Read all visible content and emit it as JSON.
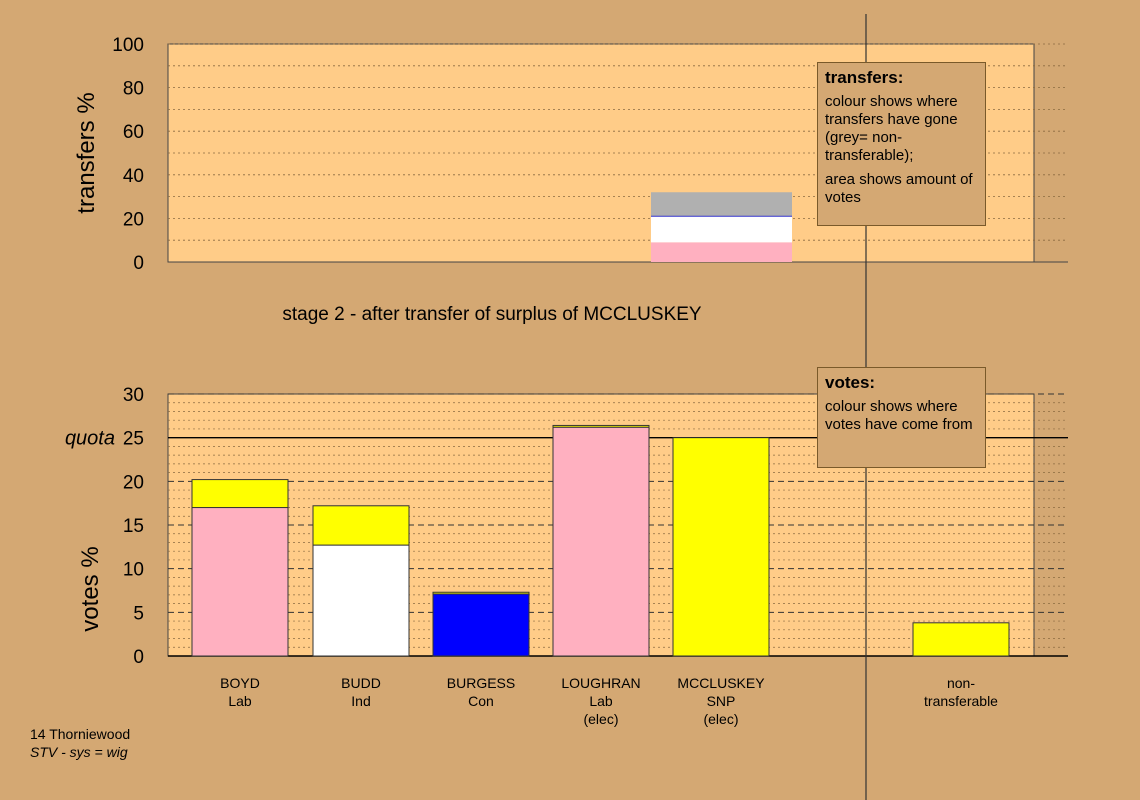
{
  "stage_title": "stage 2 - after transfer of surplus of MCCLUSKEY",
  "ward_label": "14 Thorniewood",
  "system_label": "STV - sys = wig",
  "colors": {
    "background": "#d4a873",
    "plot_bg": "#ffcc88",
    "Lab": "#ffb0c0",
    "Ind": "#ffffff",
    "Con": "#0000ff",
    "SNP": "#ffff00",
    "non_transferable": "#b0b0b0"
  },
  "transfers_legend": {
    "title": "transfers:",
    "line1": "colour shows where transfers have gone (grey= non-transferable);",
    "line2": "area shows amount of votes"
  },
  "votes_legend": {
    "title": "votes:",
    "line1": "colour shows where votes have come from"
  },
  "chart_data": [
    {
      "type": "bar",
      "ylabel": "transfers %",
      "ylim": [
        0,
        100
      ],
      "yticks": [
        0,
        20,
        40,
        60,
        80,
        100
      ],
      "grid": true,
      "bar_position": "MCCLUSKEY",
      "segments": [
        {
          "color_key": "Lab",
          "from": 0,
          "to": 9
        },
        {
          "color_key": "Ind",
          "from": 9,
          "to": 21
        },
        {
          "color_key": "non_transferable",
          "from": 21,
          "to": 32
        }
      ]
    },
    {
      "type": "bar",
      "ylabel": "votes %",
      "ylim": [
        0,
        30
      ],
      "yticks": [
        0,
        5,
        10,
        15,
        20,
        25,
        30
      ],
      "quota": 25,
      "quota_label": "quota",
      "grid": true,
      "candidates": [
        {
          "name": "BOYD",
          "party": "Lab",
          "note": "",
          "segments": [
            {
              "color_key": "Lab",
              "from": 0,
              "to": 17
            },
            {
              "color_key": "SNP",
              "from": 17,
              "to": 20.2
            }
          ]
        },
        {
          "name": "BUDD",
          "party": "Ind",
          "note": "",
          "segments": [
            {
              "color_key": "Ind",
              "from": 0,
              "to": 12.7
            },
            {
              "color_key": "SNP",
              "from": 12.7,
              "to": 17.2
            }
          ]
        },
        {
          "name": "BURGESS",
          "party": "Con",
          "note": "",
          "segments": [
            {
              "color_key": "Con",
              "from": 0,
              "to": 7.1
            },
            {
              "color_key": "SNP",
              "from": 7.1,
              "to": 7.3
            }
          ]
        },
        {
          "name": "LOUGHRAN",
          "party": "Lab",
          "note": "(elec)",
          "segments": [
            {
              "color_key": "Lab",
              "from": 0,
              "to": 26.2
            },
            {
              "color_key": "SNP",
              "from": 26.2,
              "to": 26.4
            }
          ]
        },
        {
          "name": "MCCLUSKEY",
          "party": "SNP",
          "note": "(elec)",
          "segments": [
            {
              "color_key": "SNP",
              "from": 0,
              "to": 25
            }
          ]
        },
        {
          "name": "non-",
          "party": "transferable",
          "note": "",
          "segments": [
            {
              "color_key": "SNP",
              "from": 0,
              "to": 3.8
            }
          ]
        }
      ]
    }
  ]
}
